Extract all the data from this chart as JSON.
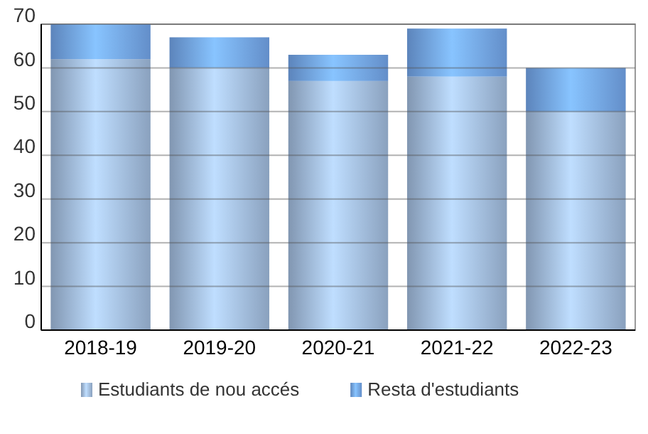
{
  "chart_data": {
    "type": "bar",
    "stacked": true,
    "categories": [
      "2018-19",
      "2019-20",
      "2020-21",
      "2021-22",
      "2022-23"
    ],
    "series": [
      {
        "name": "Estudiants de nou accés",
        "color": "#9ab3d3",
        "values": [
          62,
          60,
          57,
          58,
          50
        ]
      },
      {
        "name": "Resta d'estudiants",
        "color": "#6e9ee0",
        "values": [
          8,
          7,
          6,
          11,
          10
        ]
      }
    ],
    "ylim": [
      0,
      70
    ],
    "yticks": [
      0,
      10,
      20,
      30,
      40,
      50,
      60,
      70
    ],
    "grid": "y",
    "legend": "bottom"
  }
}
